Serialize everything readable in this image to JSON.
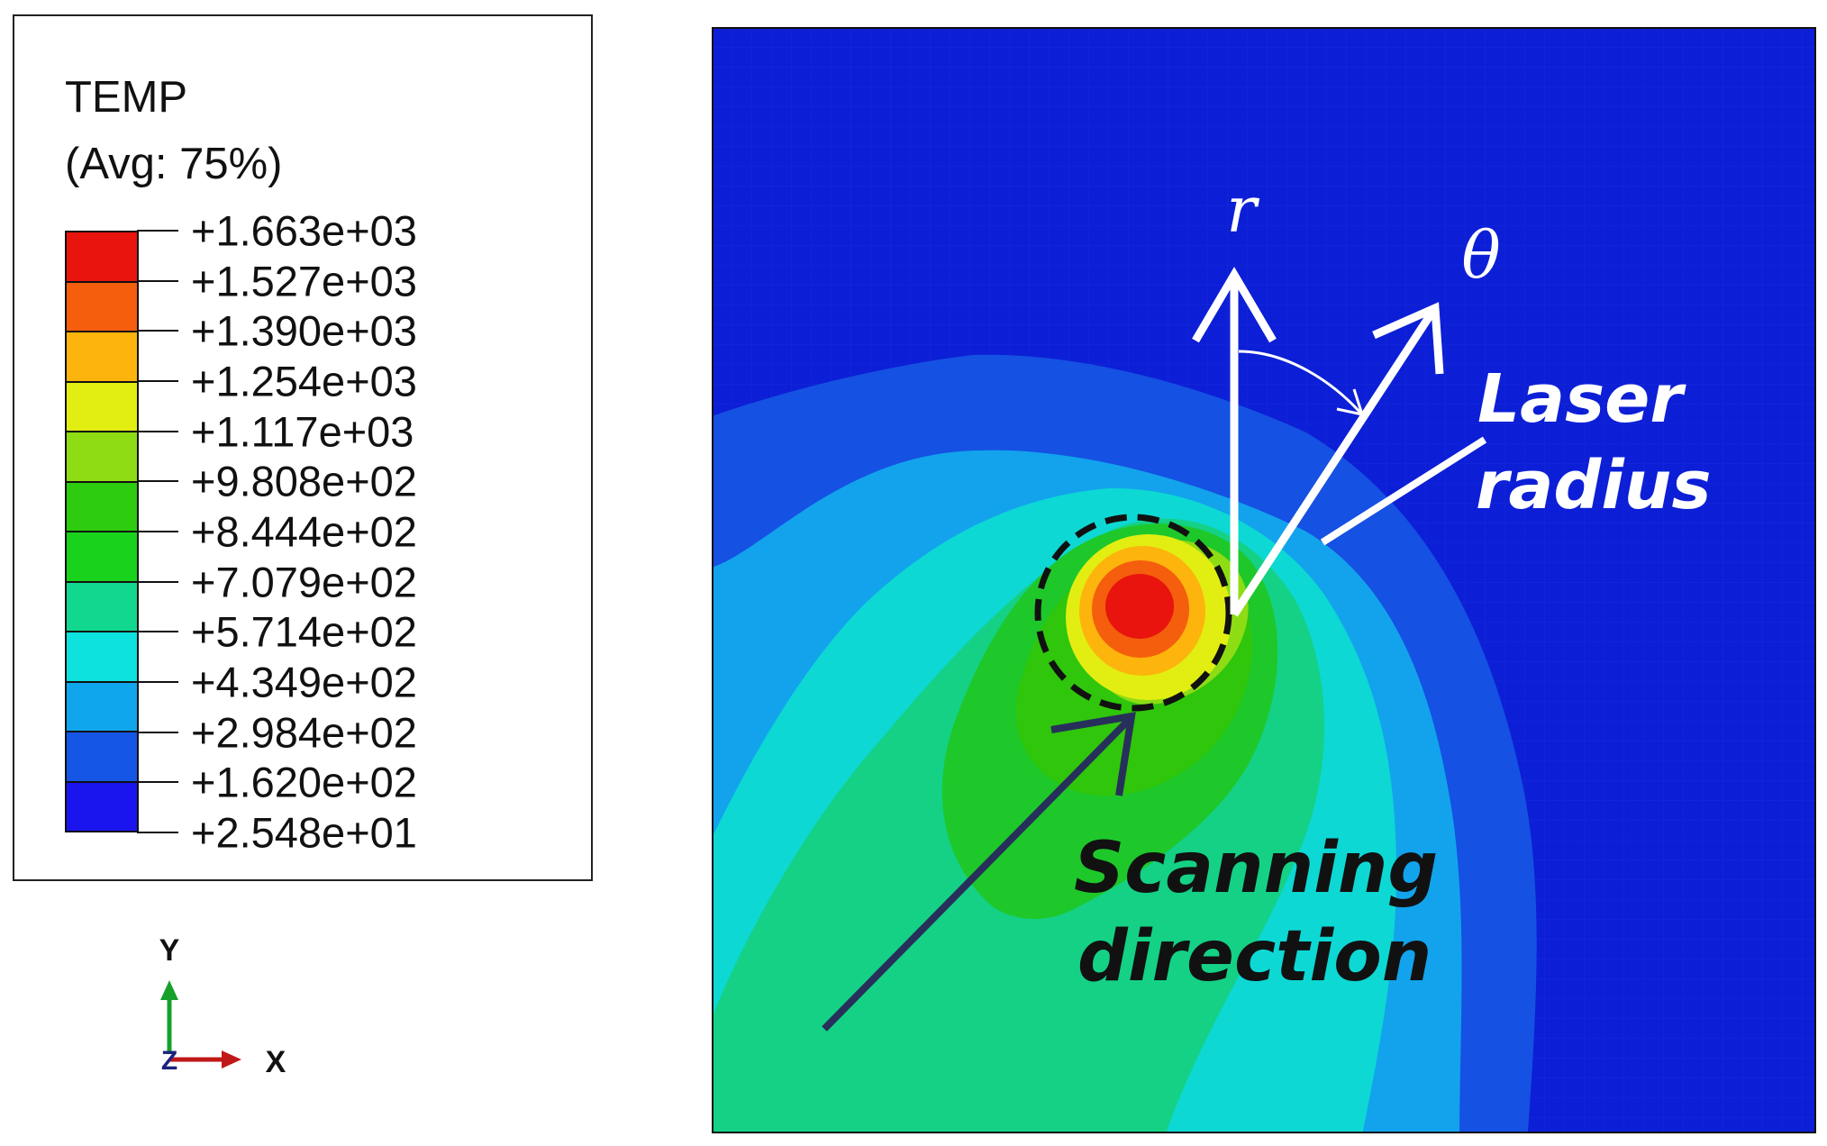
{
  "legend": {
    "variable": "TEMP",
    "averaging": "(Avg: 75%)",
    "levels": [
      "+1.663e+03",
      "+1.527e+03",
      "+1.390e+03",
      "+1.254e+03",
      "+1.117e+03",
      "+9.808e+02",
      "+8.444e+02",
      "+7.079e+02",
      "+5.714e+02",
      "+4.349e+02",
      "+2.984e+02",
      "+1.620e+02",
      "+2.548e+01"
    ],
    "colors_bottom_to_top": [
      "#1a14ef",
      "#1556e6",
      "#10a6ee",
      "#0de2de",
      "#12d88f",
      "#18d21b",
      "#2dcc0e",
      "#8edc14",
      "#e2ee11",
      "#fdb40c",
      "#f45e0d",
      "#e8140d"
    ]
  },
  "triad": {
    "y_label": "Y",
    "x_label": "X",
    "z_label": "Z"
  },
  "annotations": {
    "r_symbol": "r",
    "theta_symbol": "θ",
    "laser_line1": "Laser",
    "laser_line2": "radius",
    "scan_line1": "Scanning",
    "scan_line2": "direction"
  },
  "colors": {
    "background_blue": "#0c1fd6",
    "annotation_white": "#ffffff",
    "scan_arrow": "#27305a",
    "text_dark": "#111111"
  }
}
